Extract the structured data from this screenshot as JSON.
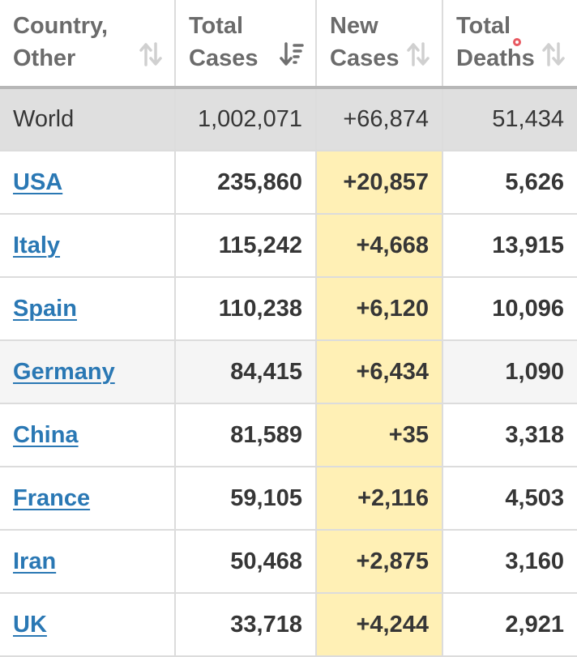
{
  "table": {
    "headers": {
      "country_line1": "Country,",
      "country_line2": "Other",
      "total_cases_line1": "Total",
      "total_cases_line2": "Cases",
      "new_cases_line1": "New",
      "new_cases_line2": "Cases",
      "total_deaths_line1": "Total",
      "total_deaths_line2": "Deaths"
    },
    "world": {
      "name": "World",
      "total_cases": "1,002,071",
      "new_cases": "+66,874",
      "total_deaths": "51,434"
    },
    "rows": [
      {
        "country": "USA",
        "total_cases": "235,860",
        "new_cases": "+20,857",
        "total_deaths": "5,626"
      },
      {
        "country": "Italy",
        "total_cases": "115,242",
        "new_cases": "+4,668",
        "total_deaths": "13,915"
      },
      {
        "country": "Spain",
        "total_cases": "110,238",
        "new_cases": "+6,120",
        "total_deaths": "10,096"
      },
      {
        "country": "Germany",
        "total_cases": "84,415",
        "new_cases": "+6,434",
        "total_deaths": "1,090"
      },
      {
        "country": "China",
        "total_cases": "81,589",
        "new_cases": "+35",
        "total_deaths": "3,318"
      },
      {
        "country": "France",
        "total_cases": "59,105",
        "new_cases": "+2,116",
        "total_deaths": "4,503"
      },
      {
        "country": "Iran",
        "total_cases": "50,468",
        "new_cases": "+2,875",
        "total_deaths": "3,160"
      },
      {
        "country": "UK",
        "total_cases": "33,718",
        "new_cases": "+4,244",
        "total_deaths": "2,921"
      }
    ]
  },
  "icons": {
    "sort_inactive": "sort-arrows-icon",
    "sort_active": "sort-descending-icon",
    "notification": "notification-dot-icon"
  },
  "colors": {
    "link": "#2a78b4",
    "new_cases_highlight": "#fff0b5",
    "world_row_bg": "#dfdfdf",
    "header_text": "#6b6b6b",
    "notification_dot": "#e85a62"
  }
}
